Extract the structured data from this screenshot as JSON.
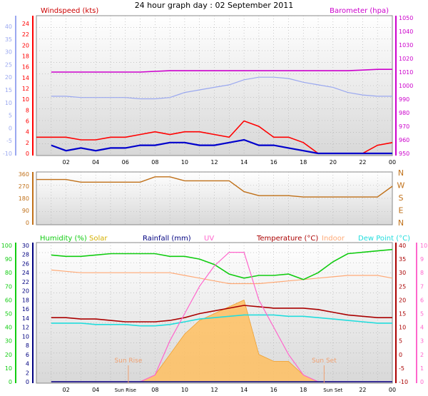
{
  "title": "24 hour graph day : 02 September 2011",
  "x_ticks": [
    "02",
    "04",
    "06",
    "08",
    "10",
    "12",
    "14",
    "16",
    "18",
    "20",
    "22",
    "00"
  ],
  "x_ticks_bottom": [
    "02",
    "04",
    "Sun Rise",
    "08",
    "10",
    "12",
    "14",
    "16",
    "18",
    "Sun Set",
    "22",
    "00"
  ],
  "colors": {
    "wind_gust": "#ff0000",
    "wind_avg": "#0000cc",
    "barometer": "#cc00cc",
    "temperature_left": "#9aa8f0",
    "direction": "#c07018",
    "humidity": "#11cc11",
    "solar": "#ffc060",
    "rainfall": "#000080",
    "uv": "#ff66cc",
    "temperature": "#aa0000",
    "indoor": "#ffaa77",
    "dewpoint": "#22dddd"
  },
  "chart_data": [
    {
      "type": "line",
      "name": "wind-barometer",
      "legend_left": "Windspeed (kts)",
      "legend_right": "Barometer (hpa)",
      "axis_far_left": {
        "ticks": [
          "40",
          "35",
          "30",
          "25",
          "20",
          "15",
          "10",
          "5",
          "0",
          "-5",
          "-10"
        ],
        "range": [
          -10,
          42
        ]
      },
      "axis_left": {
        "ticks": [
          "24",
          "22",
          "20",
          "18",
          "16",
          "14",
          "12",
          "10",
          "8",
          "6",
          "4",
          "2",
          "0"
        ],
        "range": [
          0,
          25
        ]
      },
      "axis_right": {
        "ticks": [
          "1050",
          "1040",
          "1030",
          "1020",
          "1010",
          "1000",
          "990",
          "980",
          "970",
          "960",
          "950"
        ],
        "range": [
          948,
          1052
        ]
      },
      "x": [
        1,
        2,
        3,
        4,
        5,
        6,
        7,
        8,
        9,
        10,
        11,
        12,
        13,
        14,
        15,
        16,
        17,
        18,
        19,
        20,
        21,
        22,
        23,
        24
      ],
      "series": [
        {
          "name": "Barometer",
          "axis": "right",
          "values": [
            1010,
            1010,
            1010,
            1010,
            1010,
            1010,
            1010,
            1010.5,
            1011,
            1011,
            1011,
            1011,
            1011,
            1011,
            1011,
            1011,
            1011,
            1011,
            1011,
            1011,
            1011,
            1011.5,
            1012,
            1012
          ]
        },
        {
          "name": "Temperature",
          "axis": "far_left",
          "values": [
            12.5,
            12.5,
            12,
            12,
            12,
            12,
            11.5,
            11.5,
            12,
            14,
            15,
            16,
            17,
            19,
            20,
            20,
            19.5,
            18,
            17,
            16,
            14,
            13,
            12.5,
            12.5
          ]
        },
        {
          "name": "Windspeed",
          "axis": "left",
          "values": [
            1.5,
            0.5,
            1,
            0.5,
            1,
            1,
            1.5,
            1.5,
            2,
            2,
            1.5,
            1.5,
            2,
            2.5,
            1.5,
            1.5,
            1,
            0.5,
            0,
            0,
            0,
            0,
            0,
            0
          ]
        },
        {
          "name": "Gust",
          "axis": "left",
          "values": [
            3,
            3,
            2.5,
            2.5,
            3,
            3,
            3.5,
            4,
            3.5,
            4,
            4,
            3.5,
            3,
            6,
            5,
            3,
            3,
            2,
            0,
            0,
            0,
            0,
            1.5,
            2
          ]
        }
      ]
    },
    {
      "type": "line",
      "name": "wind-direction",
      "axis_left": {
        "ticks": [
          "360",
          "270",
          "180",
          "90",
          "0"
        ],
        "range": [
          0,
          360
        ]
      },
      "axis_right": {
        "ticks": [
          "N",
          "W",
          "S",
          "E",
          "N"
        ]
      },
      "x": [
        1,
        2,
        3,
        4,
        5,
        6,
        7,
        8,
        9,
        10,
        11,
        12,
        13,
        14,
        15,
        16,
        17,
        18,
        19,
        20,
        21,
        22,
        23,
        24
      ],
      "series": [
        {
          "name": "Direction",
          "values": [
            320,
            320,
            300,
            300,
            300,
            300,
            300,
            340,
            340,
            310,
            310,
            310,
            310,
            230,
            200,
            200,
            200,
            190,
            190,
            190,
            190,
            190,
            190,
            270
          ]
        }
      ]
    },
    {
      "type": "line",
      "name": "humidity-temperature",
      "legends": [
        "Humidity (%)",
        "Solar",
        "Rainfall (mm)",
        "UV",
        "Temperature (°C)",
        "Indoor",
        "Dew Point (°C)"
      ],
      "axis_humidity": {
        "ticks": [
          "100",
          "90",
          "80",
          "70",
          "60",
          "50",
          "40",
          "30",
          "20",
          "10",
          "0"
        ],
        "range": [
          0,
          100
        ]
      },
      "axis_rain": {
        "ticks": [
          "30",
          "28",
          "26",
          "24",
          "22",
          "20",
          "18",
          "16",
          "14",
          "12",
          "10",
          "8",
          "6",
          "4",
          "2",
          "0"
        ],
        "range": [
          0,
          30
        ]
      },
      "axis_temperature": {
        "ticks": [
          "40",
          "35",
          "30",
          "25",
          "20",
          "15",
          "10",
          "5",
          "0",
          "-5",
          "-10"
        ],
        "range": [
          -10,
          40
        ]
      },
      "axis_uv": {
        "ticks": [
          "10",
          "9",
          "8",
          "7",
          "6",
          "5",
          "4",
          "3",
          "2",
          "1",
          "0"
        ],
        "range": [
          0,
          10
        ]
      },
      "annotations": [
        "Sun Rise",
        "Sun Set"
      ],
      "x": [
        1,
        2,
        3,
        4,
        5,
        6,
        7,
        8,
        9,
        10,
        11,
        12,
        13,
        14,
        15,
        16,
        17,
        18,
        19,
        20,
        21,
        22,
        23,
        24
      ],
      "series": [
        {
          "name": "Humidity",
          "axis": "humidity",
          "values": [
            93,
            92,
            92,
            93,
            94,
            94,
            94,
            94,
            92,
            92,
            90,
            86,
            79,
            76,
            78,
            78,
            79,
            75,
            80,
            88,
            94,
            95,
            96,
            97
          ]
        },
        {
          "name": "Indoor",
          "axis": "temperature",
          "values": [
            31,
            30.5,
            30,
            30,
            30,
            30,
            30,
            30,
            30,
            29,
            28,
            27,
            26,
            26,
            26,
            26.5,
            27,
            27.5,
            28,
            28.5,
            29,
            29,
            29,
            28
          ]
        },
        {
          "name": "Temperature",
          "axis": "temperature",
          "values": [
            13.5,
            13.5,
            13,
            13,
            12.5,
            12,
            12,
            12,
            12.5,
            13.5,
            15,
            16,
            17,
            18,
            17.5,
            17,
            17,
            17,
            16.5,
            15.5,
            14.5,
            14,
            13.5,
            13.5
          ]
        },
        {
          "name": "Dew Point",
          "axis": "temperature",
          "values": [
            11.5,
            11.5,
            11.5,
            11,
            11,
            11,
            10.5,
            10.5,
            11,
            12,
            13,
            13.5,
            14,
            14.5,
            14.5,
            14.5,
            14,
            14,
            13.5,
            13,
            12.5,
            12,
            11.5,
            11.5
          ]
        },
        {
          "name": "Solar",
          "axis": "uv",
          "values": [
            0,
            0,
            0,
            0,
            0,
            0,
            0,
            0.5,
            2,
            3.5,
            4.5,
            5,
            5.5,
            6,
            2,
            1.5,
            1.5,
            0.5,
            0,
            0,
            0,
            0,
            0,
            0
          ]
        },
        {
          "name": "UV",
          "axis": "uv",
          "values": [
            0,
            0,
            0,
            0,
            0,
            0,
            0,
            0.5,
            3,
            5,
            7,
            8.5,
            9.5,
            9.5,
            6,
            4,
            2,
            0.5,
            0,
            0,
            0,
            0,
            0,
            0
          ]
        },
        {
          "name": "Rainfall",
          "axis": "rain",
          "values": [
            0,
            0,
            0,
            0,
            0,
            0,
            0,
            0,
            0,
            0,
            0,
            0,
            0,
            0,
            0,
            0,
            0,
            0,
            0,
            0,
            0,
            0,
            0,
            0
          ]
        }
      ]
    }
  ]
}
